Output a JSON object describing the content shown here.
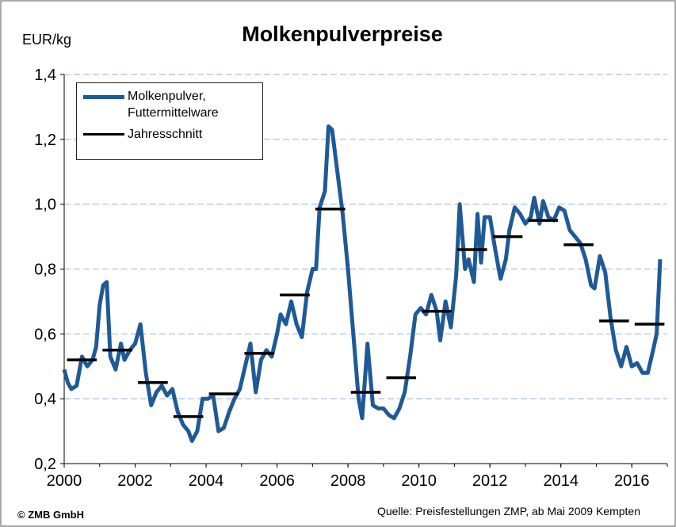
{
  "chart_data": {
    "type": "line",
    "title": "Molkenpulverpreise",
    "y_label": "EUR/kg",
    "footer": "© ZMB GmbH",
    "source": "Quelle:  Preisfestellungen ZMP, ab Mai 2009 Kempten",
    "xlim": [
      2000,
      2017
    ],
    "xticks": [
      2000,
      2002,
      2004,
      2006,
      2008,
      2010,
      2012,
      2014,
      2016
    ],
    "ylim": [
      0.2,
      1.4
    ],
    "yticks": [
      {
        "value": 0.2,
        "label": "0,2"
      },
      {
        "value": 0.4,
        "label": "0,4"
      },
      {
        "value": 0.6,
        "label": "0,6"
      },
      {
        "value": 0.8,
        "label": "0,8"
      },
      {
        "value": 1.0,
        "label": "1,0"
      },
      {
        "value": 1.2,
        "label": "1,2"
      },
      {
        "value": 1.4,
        "label": "1,4"
      }
    ],
    "grid": true,
    "legend": "upper left",
    "series": [
      {
        "name": "Molkenpulver, Futtermittelware",
        "color": "#1f5a96",
        "x": [
          2000.0,
          2000.1,
          2000.2,
          2000.35,
          2000.5,
          2000.65,
          2000.8,
          2000.9,
          2001.0,
          2001.1,
          2001.2,
          2001.3,
          2001.45,
          2001.6,
          2001.7,
          2001.85,
          2002.0,
          2002.15,
          2002.3,
          2002.45,
          2002.6,
          2002.75,
          2002.9,
          2003.05,
          2003.2,
          2003.35,
          2003.5,
          2003.6,
          2003.75,
          2003.9,
          2004.05,
          2004.2,
          2004.35,
          2004.5,
          2004.65,
          2004.8,
          2004.95,
          2005.1,
          2005.25,
          2005.4,
          2005.55,
          2005.7,
          2005.85,
          2006.0,
          2006.1,
          2006.25,
          2006.4,
          2006.55,
          2006.7,
          2006.85,
          2007.0,
          2007.1,
          2007.2,
          2007.35,
          2007.45,
          2007.55,
          2007.7,
          2007.85,
          2008.0,
          2008.15,
          2008.3,
          2008.4,
          2008.55,
          2008.7,
          2008.85,
          2009.0,
          2009.15,
          2009.3,
          2009.45,
          2009.6,
          2009.75,
          2009.9,
          2010.05,
          2010.2,
          2010.35,
          2010.5,
          2010.6,
          2010.75,
          2010.9,
          2011.05,
          2011.15,
          2011.3,
          2011.4,
          2011.55,
          2011.65,
          2011.75,
          2011.85,
          2012.0,
          2012.15,
          2012.3,
          2012.45,
          2012.55,
          2012.7,
          2012.85,
          2013.0,
          2013.15,
          2013.25,
          2013.4,
          2013.5,
          2013.65,
          2013.8,
          2013.95,
          2014.1,
          2014.25,
          2014.4,
          2014.55,
          2014.7,
          2014.85,
          2014.95,
          2015.1,
          2015.25,
          2015.4,
          2015.55,
          2015.7,
          2015.85,
          2016.0,
          2016.15,
          2016.3,
          2016.45,
          2016.6,
          2016.7,
          2016.8
        ],
        "values": [
          0.49,
          0.45,
          0.43,
          0.44,
          0.53,
          0.5,
          0.52,
          0.56,
          0.69,
          0.75,
          0.76,
          0.53,
          0.49,
          0.57,
          0.52,
          0.55,
          0.57,
          0.63,
          0.48,
          0.38,
          0.42,
          0.44,
          0.41,
          0.43,
          0.36,
          0.32,
          0.3,
          0.27,
          0.3,
          0.4,
          0.4,
          0.41,
          0.3,
          0.31,
          0.36,
          0.4,
          0.43,
          0.5,
          0.57,
          0.42,
          0.52,
          0.55,
          0.53,
          0.6,
          0.66,
          0.63,
          0.7,
          0.63,
          0.59,
          0.73,
          0.8,
          0.8,
          0.99,
          1.04,
          1.24,
          1.23,
          1.1,
          0.97,
          0.8,
          0.6,
          0.4,
          0.34,
          0.57,
          0.38,
          0.37,
          0.37,
          0.35,
          0.34,
          0.37,
          0.42,
          0.53,
          0.66,
          0.68,
          0.66,
          0.72,
          0.67,
          0.58,
          0.7,
          0.62,
          0.78,
          1.0,
          0.8,
          0.83,
          0.76,
          0.97,
          0.82,
          0.96,
          0.96,
          0.86,
          0.77,
          0.83,
          0.92,
          0.99,
          0.97,
          0.94,
          0.96,
          1.02,
          0.94,
          1.01,
          0.96,
          0.95,
          0.99,
          0.98,
          0.92,
          0.9,
          0.88,
          0.83,
          0.75,
          0.74,
          0.84,
          0.79,
          0.65,
          0.55,
          0.5,
          0.56,
          0.5,
          0.51,
          0.48,
          0.48,
          0.55,
          0.6,
          0.83
        ]
      },
      {
        "name": "Jahresschnitt",
        "color": "#000000",
        "style": "annual",
        "x": [
          2000,
          2001,
          2002,
          2003,
          2004,
          2005,
          2006,
          2007,
          2008,
          2009,
          2010,
          2011,
          2012,
          2013,
          2014,
          2015,
          2016
        ],
        "values": [
          0.52,
          0.55,
          0.45,
          0.345,
          0.415,
          0.54,
          0.72,
          0.985,
          0.42,
          0.465,
          0.67,
          0.86,
          0.9,
          0.95,
          0.875,
          0.64,
          0.63
        ]
      }
    ]
  }
}
